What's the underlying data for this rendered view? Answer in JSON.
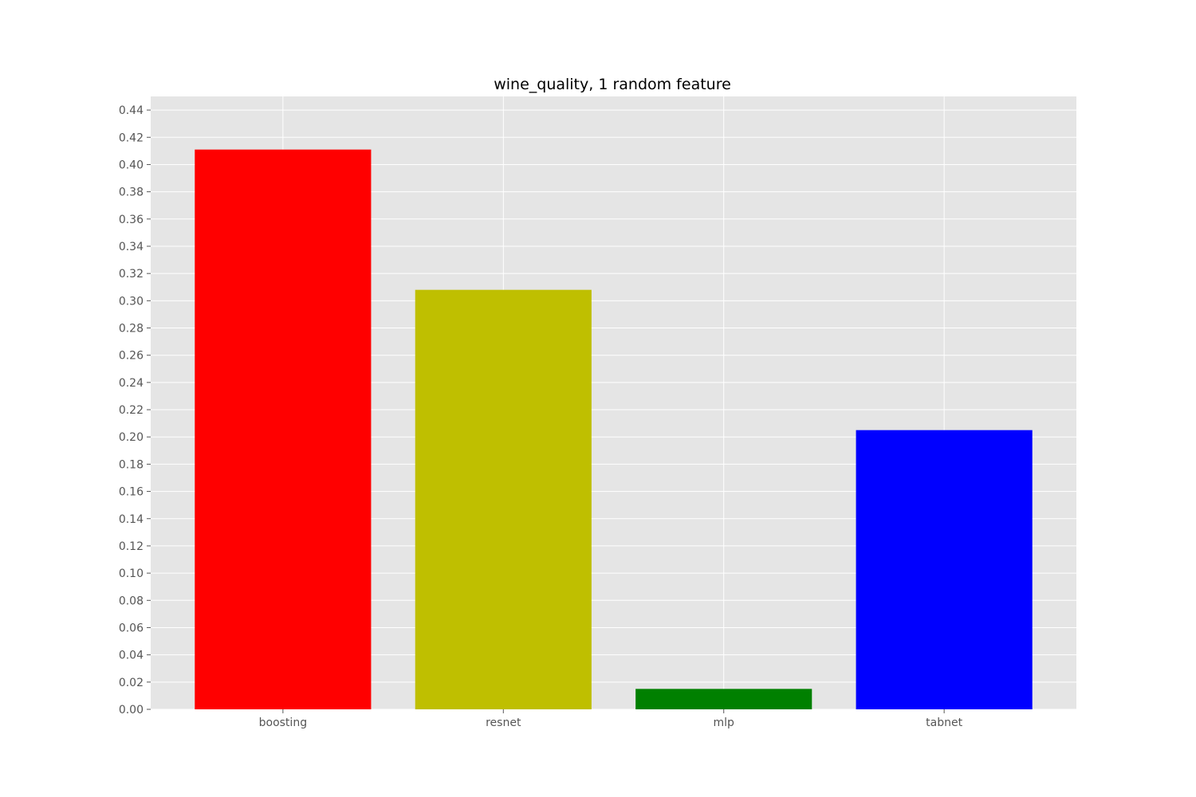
{
  "chart_data": {
    "type": "bar",
    "title": "wine_quality, 1 random feature",
    "xlabel": "",
    "ylabel": "",
    "categories": [
      "boosting",
      "resnet",
      "mlp",
      "tabnet"
    ],
    "values": [
      0.411,
      0.308,
      0.015,
      0.205
    ],
    "colors": [
      "#ff0000",
      "#bfbf00",
      "#008000",
      "#0000ff"
    ],
    "ylim": [
      0,
      0.45
    ],
    "yticks": [
      "0.00",
      "0.02",
      "0.04",
      "0.06",
      "0.08",
      "0.10",
      "0.12",
      "0.14",
      "0.16",
      "0.18",
      "0.20",
      "0.22",
      "0.24",
      "0.26",
      "0.28",
      "0.30",
      "0.32",
      "0.34",
      "0.36",
      "0.38",
      "0.40",
      "0.42",
      "0.44"
    ],
    "grid": true,
    "background": "#e5e5e5"
  }
}
